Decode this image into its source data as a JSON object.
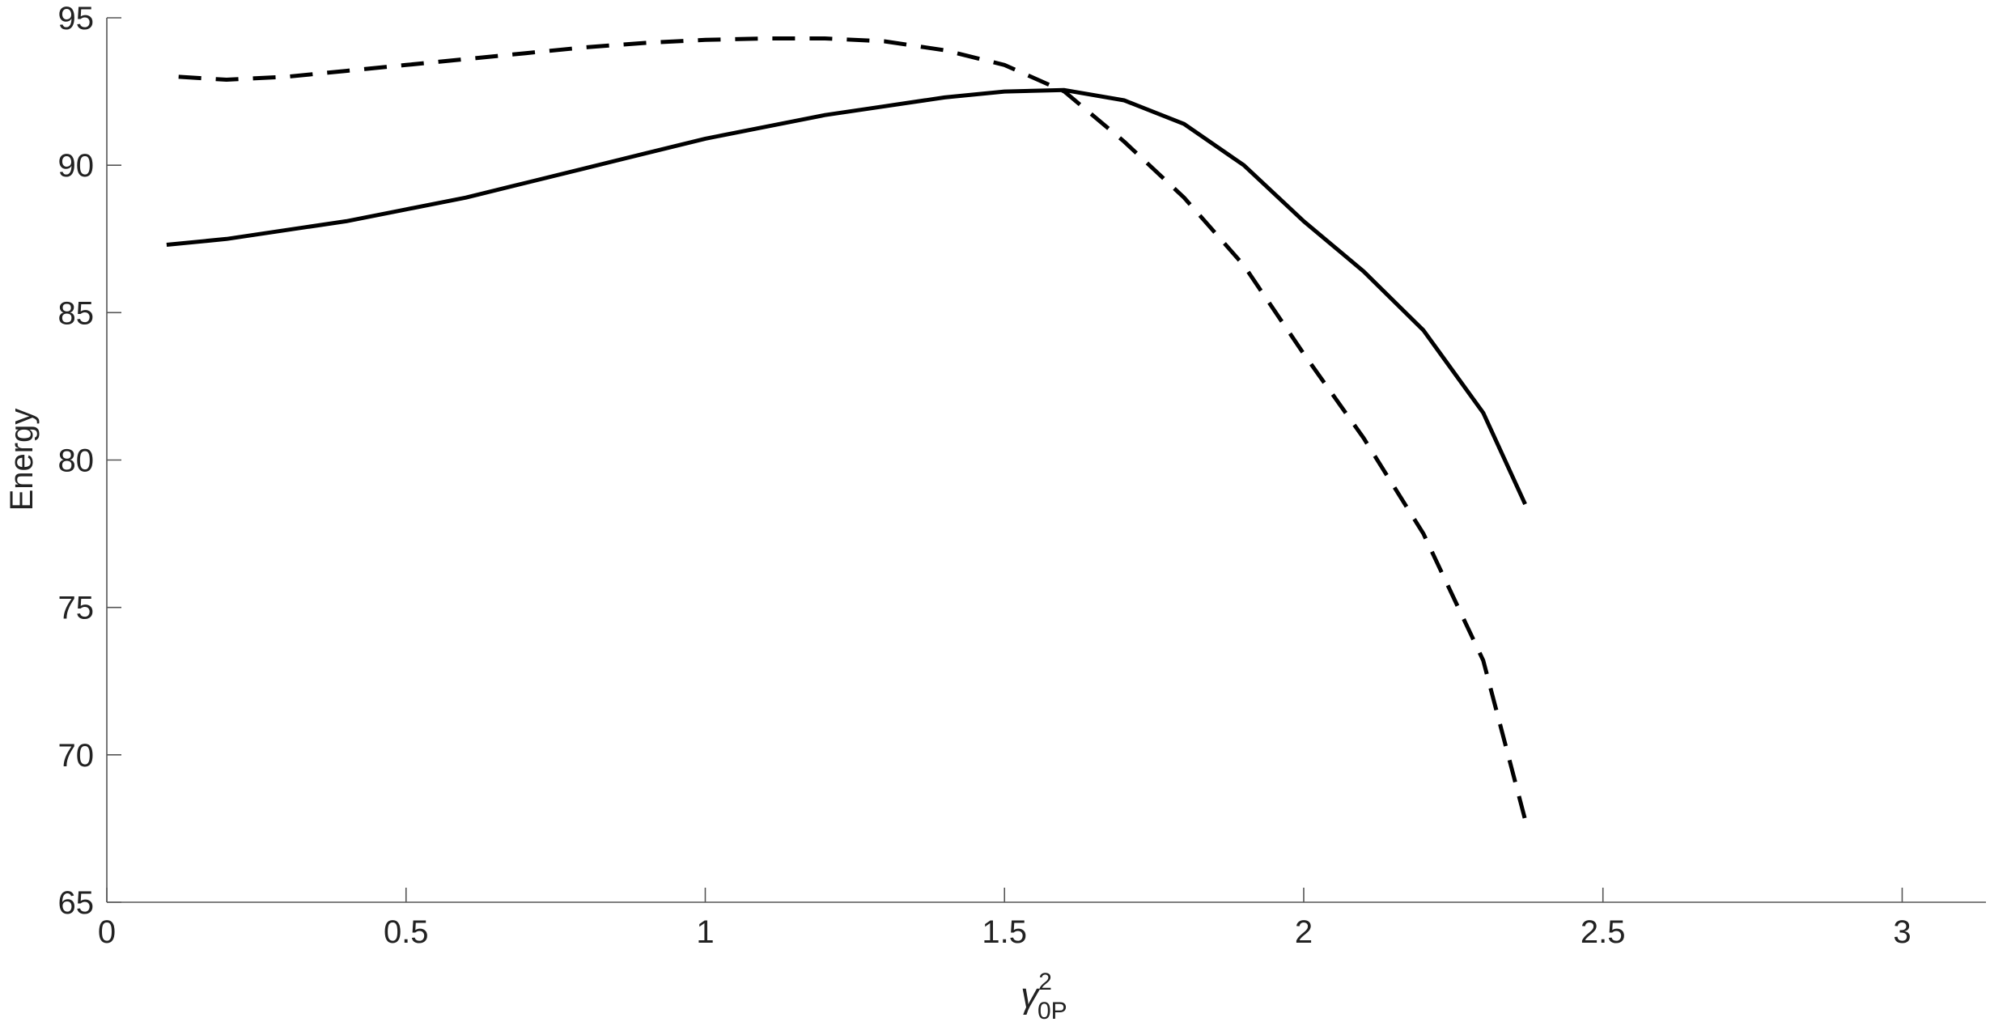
{
  "chart_data": {
    "type": "line",
    "x_label": {
      "base": "γ",
      "sup": "2",
      "sub": "0P"
    },
    "y_label": "Energy",
    "xlim": [
      0,
      3.14
    ],
    "ylim": [
      65,
      95
    ],
    "xticks": [
      0,
      0.5,
      1,
      1.5,
      2,
      2.5,
      3
    ],
    "yticks": [
      65,
      70,
      75,
      80,
      85,
      90,
      95
    ],
    "grid": false,
    "series": [
      {
        "color": "#000000",
        "style": "solid",
        "x": [
          0.1,
          0.2,
          0.3,
          0.4,
          0.5,
          0.6,
          0.7,
          0.8,
          0.9,
          1.0,
          1.1,
          1.2,
          1.3,
          1.4,
          1.5,
          1.6,
          1.7,
          1.8,
          1.9,
          2.0,
          2.1,
          2.2,
          2.3,
          2.37
        ],
        "values": [
          87.3,
          87.5,
          87.8,
          88.1,
          88.5,
          88.9,
          89.4,
          89.9,
          90.4,
          90.9,
          91.3,
          91.7,
          92.0,
          92.3,
          92.5,
          92.55,
          92.2,
          91.4,
          90.0,
          88.1,
          86.4,
          84.4,
          81.6,
          78.5
        ]
      },
      {
        "color": "#000000",
        "style": "dashed",
        "x": [
          0.12,
          0.2,
          0.3,
          0.4,
          0.5,
          0.6,
          0.7,
          0.8,
          0.9,
          1.0,
          1.1,
          1.2,
          1.3,
          1.4,
          1.5,
          1.6,
          1.7,
          1.8,
          1.9,
          2.0,
          2.1,
          2.2,
          2.3,
          2.37
        ],
        "values": [
          93.0,
          92.9,
          93.0,
          93.2,
          93.4,
          93.6,
          93.8,
          94.0,
          94.15,
          94.25,
          94.3,
          94.3,
          94.2,
          93.9,
          93.4,
          92.5,
          90.8,
          88.9,
          86.6,
          83.6,
          80.75,
          77.5,
          73.2,
          67.8
        ]
      }
    ]
  }
}
